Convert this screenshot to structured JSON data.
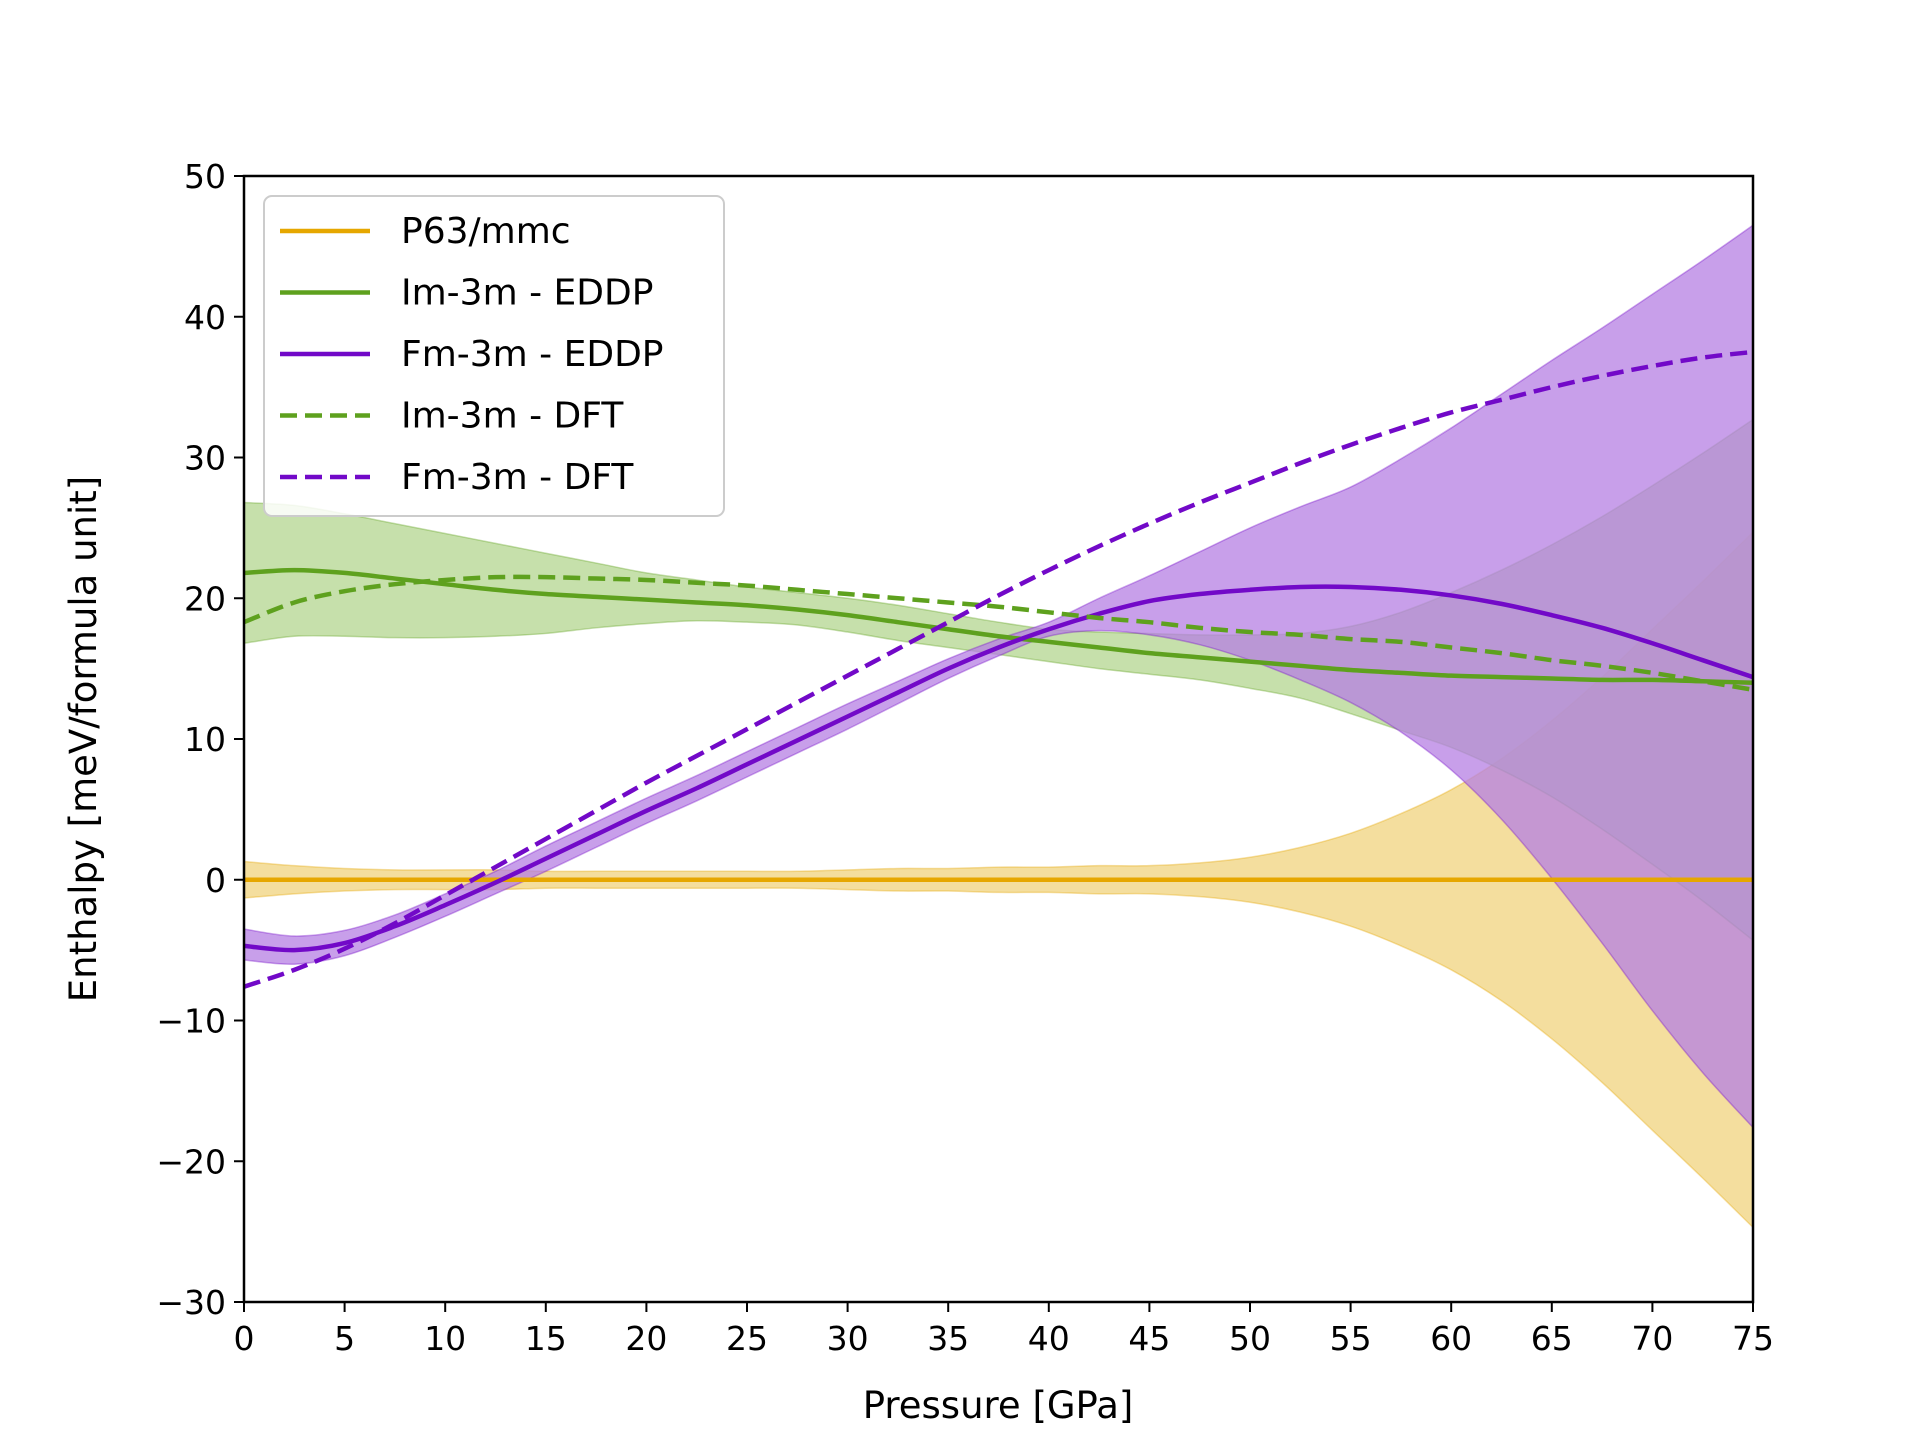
{
  "chart_data": {
    "type": "line",
    "title": "",
    "xlabel": "Pressure [GPa]",
    "ylabel": "Enthalpy [meV/formula unit]",
    "xlim": [
      0,
      75
    ],
    "ylim": [
      -30,
      50
    ],
    "grid": false,
    "legend_position": "top-left",
    "x_ticks": [
      0,
      5,
      10,
      15,
      20,
      25,
      30,
      35,
      40,
      45,
      50,
      55,
      60,
      65,
      70,
      75
    ],
    "x_tick_labels": [
      "0",
      "5",
      "10",
      "15",
      "20",
      "25",
      "30",
      "35",
      "40",
      "45",
      "50",
      "55",
      "60",
      "65",
      "70",
      "75"
    ],
    "y_ticks": [
      -30,
      -20,
      -10,
      0,
      10,
      20,
      30,
      40,
      50
    ],
    "y_tick_labels": [
      "−30",
      "−20",
      "−10",
      "0",
      "10",
      "20",
      "30",
      "40",
      "50"
    ],
    "x": [
      0,
      2.5,
      5,
      7.5,
      10,
      12.5,
      15,
      17.5,
      20,
      22.5,
      25,
      27.5,
      30,
      32.5,
      35,
      37.5,
      40,
      42.5,
      45,
      47.5,
      50,
      52.5,
      55,
      57.5,
      60,
      62.5,
      65,
      67.5,
      70,
      72.5,
      75
    ],
    "series": [
      {
        "name": "P63/mmc",
        "color": "#e6a700",
        "dash": "solid",
        "values": [
          0,
          0,
          0,
          0,
          0,
          0,
          0,
          0,
          0,
          0,
          0,
          0,
          0,
          0,
          0,
          0,
          0,
          0,
          0,
          0,
          0,
          0,
          0,
          0,
          0,
          0,
          0,
          0,
          0,
          0,
          0
        ],
        "band_lower": [
          -1.3,
          -1.0,
          -0.8,
          -0.7,
          -0.7,
          -0.7,
          -0.6,
          -0.6,
          -0.6,
          -0.6,
          -0.6,
          -0.6,
          -0.7,
          -0.8,
          -0.8,
          -0.9,
          -0.9,
          -1.0,
          -1.0,
          -1.2,
          -1.6,
          -2.3,
          -3.3,
          -4.7,
          -6.4,
          -8.6,
          -11.3,
          -14.4,
          -17.8,
          -21.2,
          -24.7
        ],
        "band_upper": [
          1.3,
          1.0,
          0.8,
          0.7,
          0.7,
          0.7,
          0.6,
          0.6,
          0.6,
          0.6,
          0.6,
          0.6,
          0.7,
          0.8,
          0.8,
          0.9,
          0.9,
          1.0,
          1.0,
          1.2,
          1.6,
          2.3,
          3.3,
          4.7,
          6.4,
          8.6,
          11.3,
          14.4,
          17.8,
          21.2,
          24.7
        ],
        "band_color": "#f0d37e"
      },
      {
        "name": "Im-3m - EDDP",
        "color": "#5ea11e",
        "dash": "solid",
        "values": [
          21.8,
          22.0,
          21.8,
          21.4,
          21.0,
          20.6,
          20.3,
          20.1,
          19.9,
          19.7,
          19.5,
          19.2,
          18.8,
          18.3,
          17.8,
          17.3,
          16.9,
          16.5,
          16.1,
          15.8,
          15.5,
          15.2,
          14.9,
          14.7,
          14.5,
          14.4,
          14.3,
          14.2,
          14.2,
          14.1,
          14.0
        ],
        "band_lower": [
          16.8,
          17.3,
          17.3,
          17.2,
          17.2,
          17.3,
          17.5,
          17.9,
          18.2,
          18.4,
          18.3,
          18.1,
          17.6,
          17.0,
          16.5,
          16.0,
          15.5,
          15.0,
          14.6,
          14.2,
          13.6,
          12.9,
          11.8,
          10.6,
          9.4,
          7.8,
          5.9,
          3.6,
          1.1,
          -1.5,
          -4.3
        ],
        "band_upper": [
          26.8,
          26.6,
          26.0,
          25.3,
          24.6,
          23.9,
          23.2,
          22.5,
          21.8,
          21.3,
          20.8,
          20.4,
          20.0,
          19.5,
          18.9,
          18.3,
          17.8,
          17.6,
          17.5,
          17.4,
          17.4,
          17.5,
          18.0,
          19.0,
          20.4,
          22.0,
          23.8,
          25.8,
          28.0,
          30.3,
          32.7
        ],
        "band_color": "#b3d68f"
      },
      {
        "name": "Fm-3m - EDDP",
        "color": "#7209c8",
        "dash": "solid",
        "values": [
          -4.7,
          -5.0,
          -4.5,
          -3.3,
          -1.8,
          -0.2,
          1.5,
          3.2,
          4.9,
          6.5,
          8.2,
          9.9,
          11.6,
          13.3,
          15.0,
          16.5,
          17.8,
          18.9,
          19.8,
          20.3,
          20.6,
          20.8,
          20.8,
          20.6,
          20.2,
          19.6,
          18.8,
          17.9,
          16.8,
          15.6,
          14.4
        ],
        "band_lower": [
          -5.7,
          -6.0,
          -5.4,
          -4.1,
          -2.6,
          -1.0,
          0.6,
          2.3,
          4.0,
          5.6,
          7.3,
          9.0,
          10.7,
          12.5,
          14.3,
          15.9,
          17.3,
          17.7,
          17.4,
          16.7,
          15.6,
          14.2,
          12.6,
          10.5,
          7.8,
          4.3,
          0.1,
          -4.5,
          -9.3,
          -13.7,
          -17.6
        ],
        "band_upper": [
          -3.5,
          -4.0,
          -3.6,
          -2.5,
          -1.0,
          0.6,
          2.4,
          4.1,
          5.8,
          7.4,
          9.1,
          10.8,
          12.5,
          14.1,
          15.7,
          17.1,
          18.3,
          20.0,
          21.6,
          23.3,
          25.0,
          26.5,
          27.9,
          29.9,
          32.1,
          34.5,
          36.9,
          39.2,
          41.6,
          44.0,
          46.5
        ],
        "band_color": "#b57fe3"
      },
      {
        "name": "Im-3m - DFT",
        "color": "#5ea11e",
        "dash": "dashed",
        "values": [
          18.3,
          19.7,
          20.5,
          21.0,
          21.3,
          21.5,
          21.5,
          21.4,
          21.3,
          21.1,
          20.9,
          20.6,
          20.3,
          20.0,
          19.7,
          19.4,
          19.0,
          18.6,
          18.3,
          17.9,
          17.6,
          17.4,
          17.1,
          16.9,
          16.5,
          16.1,
          15.6,
          15.2,
          14.7,
          14.1,
          13.5
        ]
      },
      {
        "name": "Fm-3m - DFT",
        "color": "#7209c8",
        "dash": "dashed",
        "values": [
          -7.6,
          -6.4,
          -4.9,
          -3.1,
          -1.1,
          0.9,
          2.9,
          4.9,
          6.9,
          8.8,
          10.7,
          12.6,
          14.5,
          16.4,
          18.3,
          20.2,
          22.0,
          23.7,
          25.3,
          26.8,
          28.2,
          29.6,
          30.9,
          32.1,
          33.2,
          34.1,
          35.0,
          35.8,
          36.5,
          37.1,
          37.5
        ]
      }
    ]
  }
}
